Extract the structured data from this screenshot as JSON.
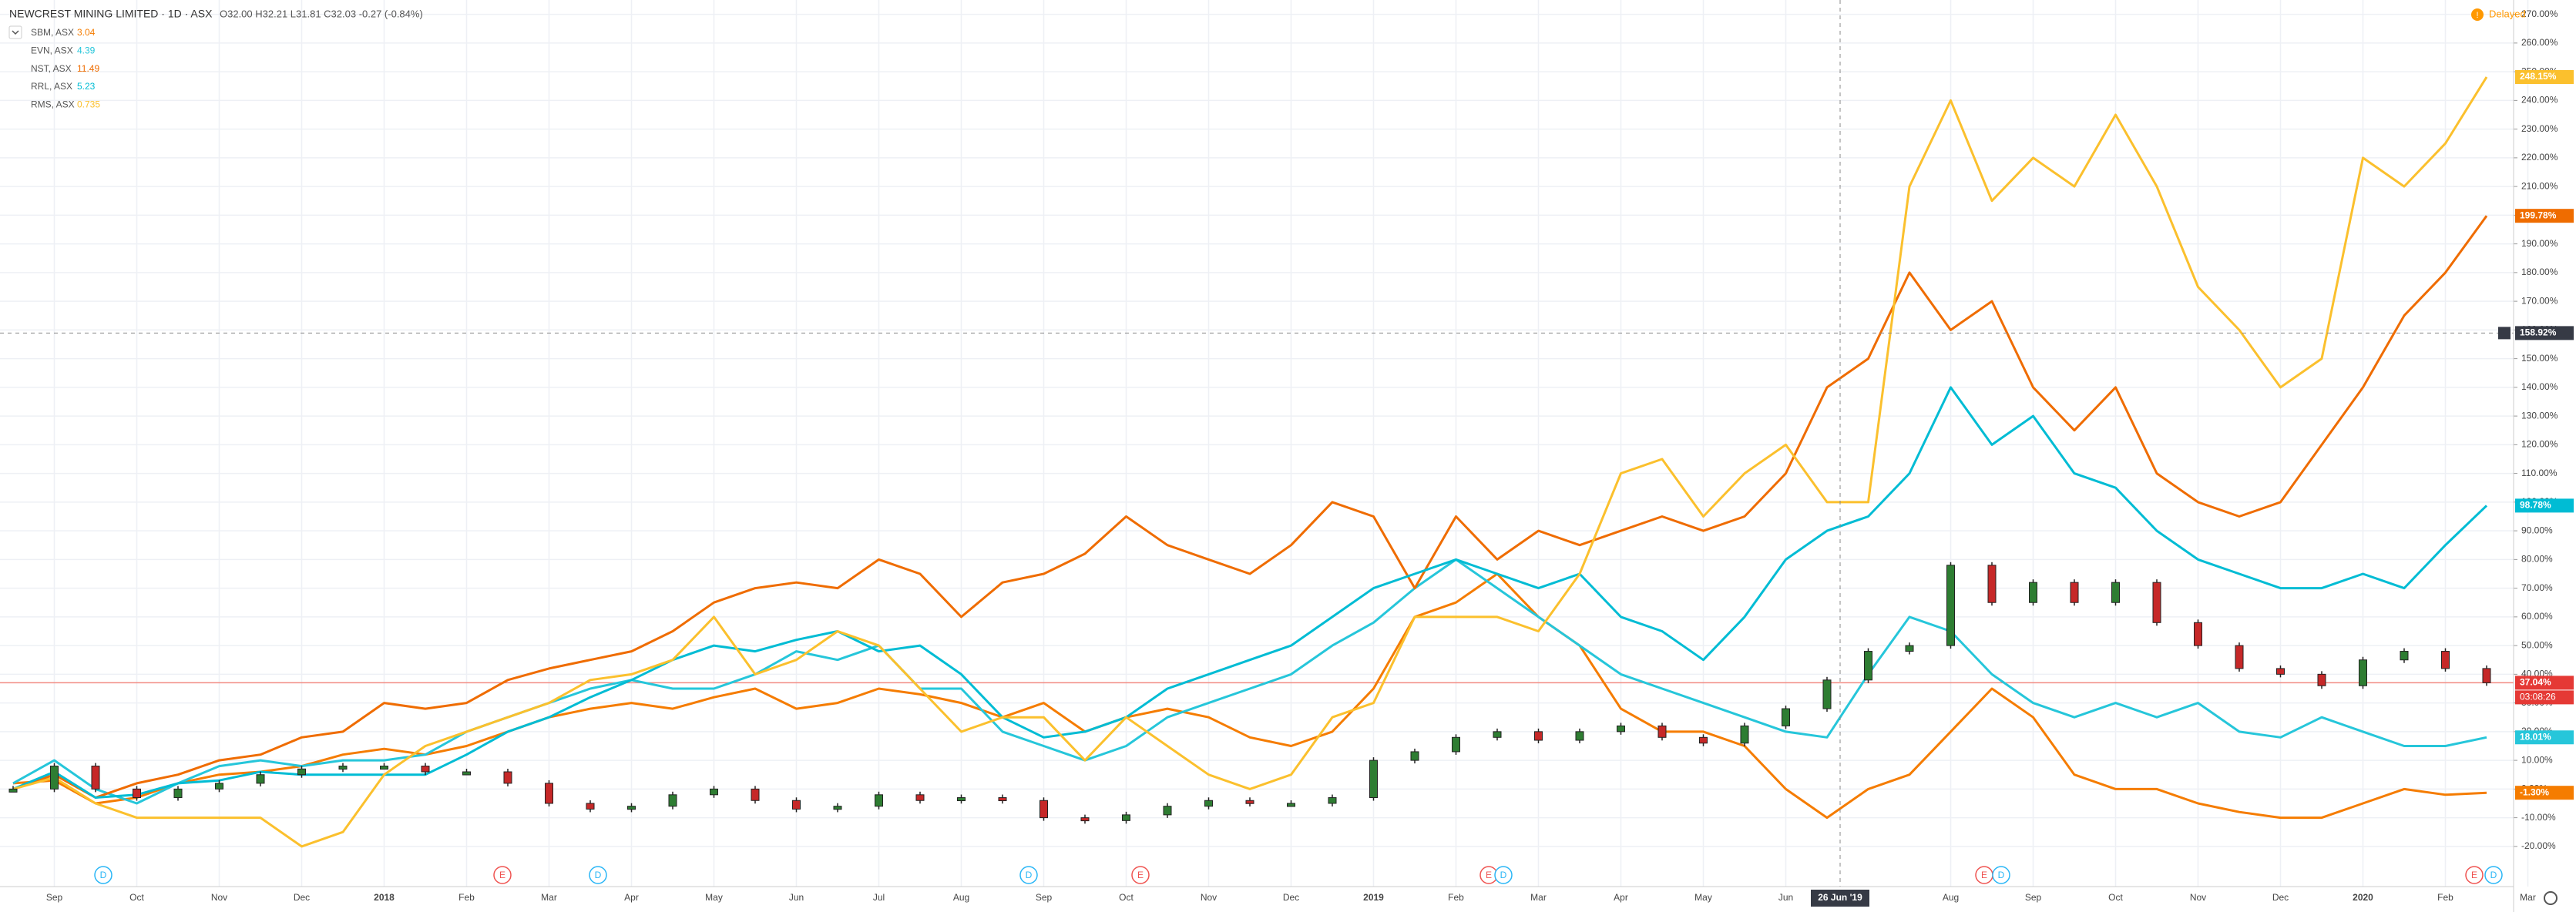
{
  "chart_data": {
    "type": "line",
    "title": "NEWCREST MINING LIMITED · 1D · ASX",
    "ohlc": "O32.00 H32.21 L31.81 C32.03 -0.27 (-0.84%)",
    "status": "Delayed",
    "categories": [
      null,
      "Sep",
      null,
      "Oct",
      null,
      "Nov",
      null,
      "Dec",
      null,
      "2018",
      null,
      "Feb",
      null,
      "Mar",
      null,
      "Apr",
      null,
      "May",
      null,
      "Jun",
      null,
      "Jul",
      null,
      "Aug",
      null,
      "Sep",
      null,
      "Oct",
      null,
      "Nov",
      null,
      "Dec",
      null,
      "2019",
      null,
      "Feb",
      null,
      "Mar",
      null,
      "Apr",
      null,
      "May",
      null,
      "Jun",
      null,
      null,
      null,
      "Aug",
      null,
      "Sep",
      null,
      "Oct",
      null,
      "Nov",
      null,
      "Dec",
      null,
      "2020",
      null,
      "Feb",
      null,
      "Mar"
    ],
    "candles": {
      "up_color": "#2e7d32",
      "down_color": "#c62828",
      "line_color": "#f28b82",
      "last_label": "37.04%",
      "countdown": "03:08:26",
      "values": [
        0,
        8,
        0,
        -3,
        0,
        2,
        5,
        7,
        8,
        8,
        6,
        6,
        2,
        -5,
        -7,
        -6,
        -2,
        0,
        -4,
        -7,
        -6,
        -2,
        -4,
        -3,
        -4,
        -10,
        -11,
        -9,
        -6,
        -4,
        -5,
        -5,
        -3,
        10,
        13,
        18,
        20,
        17,
        20,
        22,
        18,
        16,
        22,
        28,
        38,
        48,
        50,
        78,
        65,
        72,
        65,
        72,
        58,
        50,
        42,
        40,
        36,
        45,
        48,
        42,
        37.04,
        null
      ]
    },
    "series": [
      {
        "name": "SBM, ASX",
        "price": 3.04,
        "color": "#f57c00",
        "last_label": "-1.30%",
        "values": [
          2,
          3,
          -5,
          -3,
          2,
          5,
          6,
          8,
          12,
          14,
          12,
          15,
          20,
          25,
          28,
          30,
          28,
          32,
          35,
          28,
          30,
          35,
          33,
          30,
          25,
          30,
          20,
          25,
          28,
          25,
          18,
          15,
          20,
          35,
          60,
          65,
          75,
          60,
          50,
          28,
          20,
          20,
          15,
          0,
          -10,
          0,
          5,
          20,
          35,
          25,
          5,
          0,
          0,
          -5,
          -8,
          -10,
          -10,
          -5,
          0,
          -2,
          -1.3,
          null
        ]
      },
      {
        "name": "EVN, ASX",
        "price": 4.39,
        "color": "#26c6da",
        "last_label": "18.01%",
        "values": [
          2,
          10,
          0,
          -5,
          2,
          8,
          10,
          8,
          10,
          10,
          12,
          20,
          25,
          30,
          35,
          38,
          35,
          35,
          40,
          48,
          45,
          50,
          35,
          35,
          20,
          15,
          10,
          15,
          25,
          30,
          35,
          40,
          50,
          58,
          70,
          80,
          70,
          60,
          50,
          40,
          35,
          30,
          25,
          20,
          18,
          40,
          60,
          55,
          40,
          30,
          25,
          30,
          25,
          30,
          20,
          18,
          25,
          20,
          15,
          15,
          18.01,
          null
        ]
      },
      {
        "name": "NST, ASX",
        "price": 11.49,
        "color": "#ef6c00",
        "last_label": "199.78%",
        "values": [
          0,
          5,
          -3,
          2,
          5,
          10,
          12,
          18,
          20,
          30,
          28,
          30,
          38,
          42,
          45,
          48,
          55,
          65,
          70,
          72,
          70,
          80,
          75,
          60,
          72,
          75,
          82,
          95,
          85,
          80,
          75,
          85,
          100,
          95,
          70,
          95,
          80,
          90,
          85,
          90,
          95,
          90,
          95,
          110,
          140,
          150,
          180,
          160,
          170,
          140,
          125,
          140,
          110,
          100,
          95,
          100,
          120,
          140,
          165,
          180,
          199.78,
          null
        ]
      },
      {
        "name": "RRL, ASX",
        "price": 5.23,
        "color": "#00bcd4",
        "last_label": "98.78%",
        "values": [
          0,
          6,
          -3,
          -2,
          2,
          3,
          6,
          5,
          5,
          5,
          5,
          12,
          20,
          25,
          32,
          38,
          45,
          50,
          48,
          52,
          55,
          48,
          50,
          40,
          25,
          18,
          20,
          25,
          35,
          40,
          45,
          50,
          60,
          70,
          75,
          80,
          75,
          70,
          75,
          60,
          55,
          45,
          60,
          80,
          90,
          95,
          110,
          140,
          120,
          130,
          110,
          105,
          90,
          80,
          75,
          70,
          70,
          75,
          70,
          85,
          98.78,
          null
        ]
      },
      {
        "name": "RMS, ASX",
        "price": 0.735,
        "color": "#fbc02d",
        "last_label": "248.15%",
        "values": [
          0,
          4,
          -5,
          -10,
          -10,
          -10,
          -10,
          -20,
          -15,
          5,
          15,
          20,
          25,
          30,
          38,
          40,
          45,
          60,
          40,
          45,
          55,
          50,
          35,
          20,
          25,
          25,
          10,
          25,
          15,
          5,
          0,
          5,
          25,
          30,
          60,
          60,
          60,
          55,
          75,
          110,
          115,
          95,
          110,
          120,
          100,
          100,
          210,
          240,
          205,
          220,
          210,
          235,
          210,
          175,
          160,
          140,
          150,
          220,
          210,
          225,
          248.15,
          null
        ]
      }
    ],
    "ylim": [
      -34,
      275
    ],
    "yticks": [
      {
        "value": -20,
        "label": "-20.00%"
      },
      {
        "value": -10,
        "label": "-10.00%"
      },
      {
        "value": 0,
        "label": "0.00%"
      },
      {
        "value": 10,
        "label": "10.00%"
      },
      {
        "value": 20,
        "label": "20.00%"
      },
      {
        "value": 30,
        "label": "30.00%"
      },
      {
        "value": 40,
        "label": "40.00%"
      },
      {
        "value": 50,
        "label": "50.00%"
      },
      {
        "value": 60,
        "label": "60.00%"
      },
      {
        "value": 70,
        "label": "70.00%"
      },
      {
        "value": 80,
        "label": "80.00%"
      },
      {
        "value": 90,
        "label": "90.00%"
      },
      {
        "value": 100,
        "label": "100.00%"
      },
      {
        "value": 110,
        "label": "110.00%"
      },
      {
        "value": 120,
        "label": "120.00%"
      },
      {
        "value": 130,
        "label": "130.00%"
      },
      {
        "value": 140,
        "label": "140.00%"
      },
      {
        "value": 150,
        "label": "150.00%"
      },
      {
        "value": 160,
        "label": "160.00%"
      },
      {
        "value": 170,
        "label": "170.00%"
      },
      {
        "value": 180,
        "label": "180.00%"
      },
      {
        "value": 190,
        "label": "190.00%"
      },
      {
        "value": 200,
        "label": "200.00%"
      },
      {
        "value": 210,
        "label": "210.00%"
      },
      {
        "value": 220,
        "label": "220.00%"
      },
      {
        "value": 230,
        "label": "230.00%"
      },
      {
        "value": 240,
        "label": "240.00%"
      },
      {
        "value": 250,
        "label": "250.00%"
      },
      {
        "value": 260,
        "label": "260.00%"
      },
      {
        "value": 270,
        "label": "270.00%"
      }
    ],
    "grid": true,
    "crosshair": {
      "x_label": "26 Jun '19",
      "y": {
        "value": 158.92,
        "label": "158.92%"
      }
    },
    "events": [
      "D",
      "E",
      "D",
      "D",
      "E",
      "E",
      "D",
      "E",
      "D",
      "E",
      "D"
    ]
  }
}
